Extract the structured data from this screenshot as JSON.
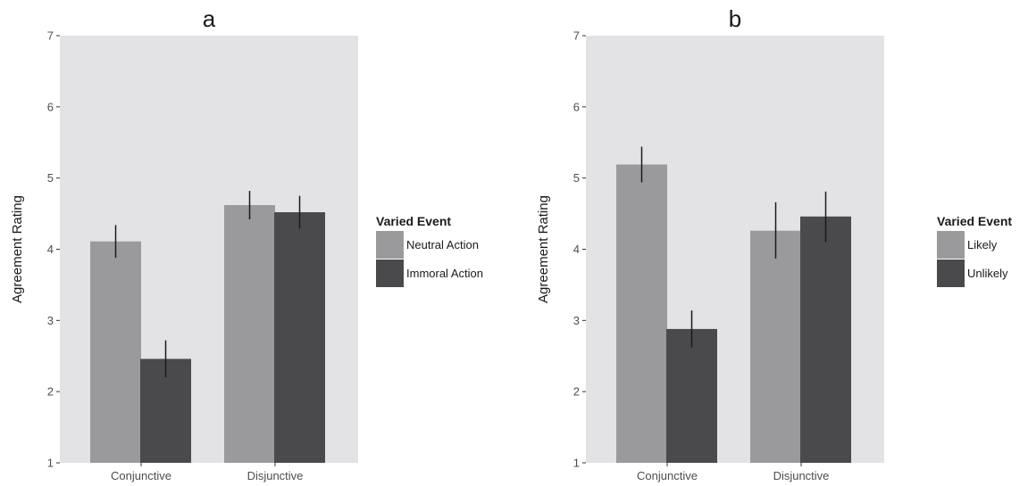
{
  "chart_data": [
    {
      "type": "bar",
      "title": "a",
      "xlabel": "",
      "ylabel": "Agreement Rating",
      "ylim": [
        1,
        7
      ],
      "yticks": [
        1,
        2,
        3,
        4,
        5,
        6,
        7
      ],
      "categories": [
        "Conjunctive",
        "Disjunctive"
      ],
      "legend_title": "Varied Event",
      "legend_position": "right",
      "grid": false,
      "series": [
        {
          "name": "Neutral Action",
          "color": "#9a9a9d",
          "values": [
            4.11,
            4.62
          ],
          "error_low": [
            3.88,
            4.42
          ],
          "error_high": [
            4.34,
            4.82
          ]
        },
        {
          "name": "Immoral Action",
          "color": "#4a4a4c",
          "values": [
            2.46,
            4.52
          ],
          "error_low": [
            2.2,
            4.29
          ],
          "error_high": [
            2.72,
            4.75
          ]
        }
      ]
    },
    {
      "type": "bar",
      "title": "b",
      "xlabel": "",
      "ylabel": "Agreement Rating",
      "ylim": [
        1,
        7
      ],
      "yticks": [
        1,
        2,
        3,
        4,
        5,
        6,
        7
      ],
      "categories": [
        "Conjunctive",
        "Disjunctive"
      ],
      "legend_title": "Varied Event",
      "legend_position": "right",
      "grid": false,
      "series": [
        {
          "name": "Likely",
          "color": "#9a9a9d",
          "values": [
            5.19,
            4.26
          ],
          "error_low": [
            4.94,
            3.87
          ],
          "error_high": [
            5.44,
            4.66
          ]
        },
        {
          "name": "Unlikely",
          "color": "#4a4a4c",
          "values": [
            2.88,
            4.46
          ],
          "error_low": [
            2.62,
            4.1
          ],
          "error_high": [
            3.14,
            4.81
          ]
        }
      ]
    }
  ],
  "colors": {
    "panel_background": "#e3e3e5",
    "axis_tick": "#333333",
    "error_bar": "#1a1a1a"
  }
}
